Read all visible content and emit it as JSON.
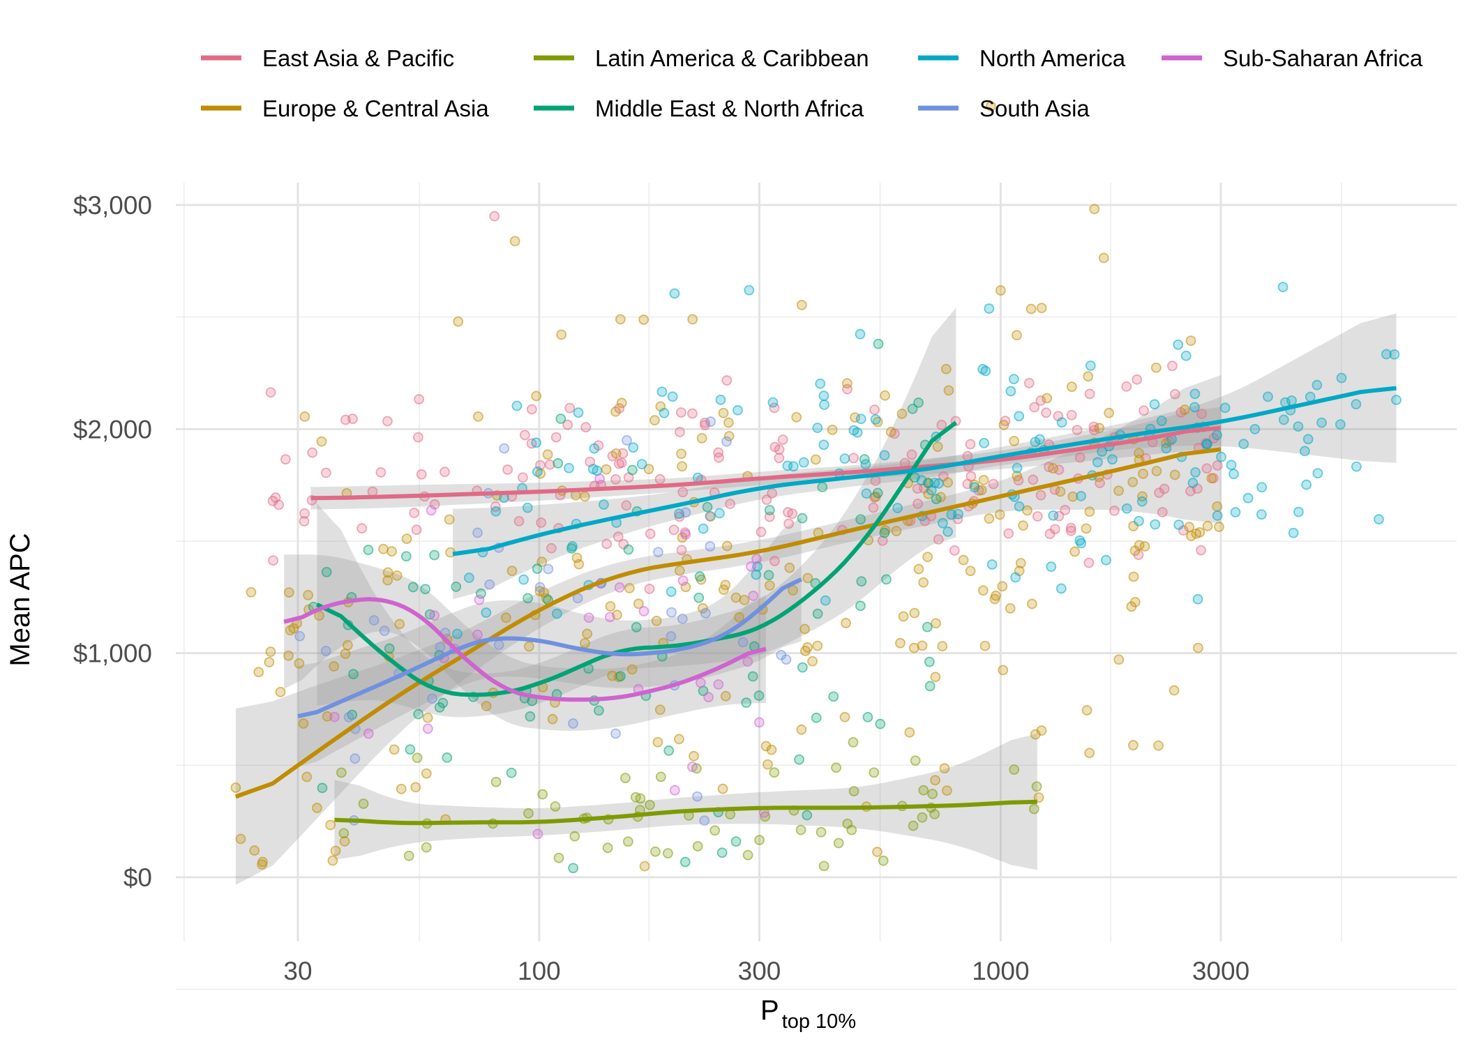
{
  "chart_data": {
    "type": "scatter",
    "title": "",
    "xlabel": "P",
    "xlabel_subscript": "top 10%",
    "ylabel": "Mean APC",
    "x_scale": "log",
    "xlim": [
      15,
      9000
    ],
    "ylim": [
      -300,
      3100
    ],
    "x_ticks": [
      30,
      100,
      300,
      1000,
      3000
    ],
    "x_tick_labels": [
      "30",
      "100",
      "300",
      "1000",
      "3000"
    ],
    "y_ticks": [
      0,
      1000,
      2000,
      3000
    ],
    "y_tick_labels": [
      "$0",
      "$1,000",
      "$2,000",
      "$3,000"
    ],
    "grid": true,
    "legend_position": "top",
    "trend": "loess smooth with confidence band",
    "series": [
      {
        "name": "East Asia & Pacific",
        "color": "#E16A86",
        "scatter": {
          "x_range": [
            25,
            3000
          ],
          "y_mean": 1800,
          "y_sd": 200,
          "n": 180
        },
        "trend": {
          "x": [
            32,
            50,
            100,
            200,
            300,
            500,
            1000,
            2000,
            3000
          ],
          "y": [
            1690,
            1700,
            1720,
            1750,
            1780,
            1810,
            1860,
            1950,
            2020
          ]
        },
        "band": [
          50,
          50,
          40,
          30,
          30,
          30,
          40,
          70,
          100
        ]
      },
      {
        "name": "Europe & Central Asia",
        "color": "#C08C00",
        "scatter": {
          "x_range": [
            22,
            3000
          ],
          "y_mean": 1350,
          "y_sd": 500,
          "n": 260
        },
        "trend": {
          "x": [
            22,
            30,
            50,
            70,
            100,
            150,
            200,
            300,
            500,
            1000,
            2000,
            3000
          ],
          "y": [
            300,
            500,
            820,
            1000,
            1200,
            1360,
            1400,
            1450,
            1560,
            1700,
            1840,
            1930
          ]
        },
        "band": [
          420,
          330,
          160,
          100,
          80,
          60,
          50,
          50,
          50,
          60,
          200,
          370
        ]
      },
      {
        "name": "Latin America & Caribbean",
        "color": "#7E9A00",
        "scatter": {
          "x_range": [
            36,
            1200
          ],
          "y_mean": 280,
          "y_sd": 160,
          "n": 60
        },
        "trend": {
          "x": [
            36,
            50,
            70,
            100,
            150,
            200,
            300,
            500,
            800,
            1200
          ],
          "y": [
            260,
            240,
            245,
            245,
            270,
            295,
            310,
            310,
            320,
            340
          ]
        },
        "band": [
          200,
          90,
          70,
          60,
          60,
          60,
          70,
          90,
          170,
          330
        ]
      },
      {
        "name": "Middle East & North Africa",
        "color": "#00A374",
        "scatter": {
          "x_range": [
            32,
            800
          ],
          "y_mean": 900,
          "y_sd": 450,
          "n": 90
        },
        "trend": {
          "x": [
            33,
            40,
            50,
            60,
            80,
            100,
            150,
            200,
            300,
            400,
            500,
            600,
            800
          ],
          "y": [
            1270,
            1100,
            930,
            820,
            810,
            860,
            1020,
            1030,
            1100,
            1280,
            1480,
            1720,
            2110
          ]
        },
        "band": [
          520,
          300,
          150,
          110,
          90,
          90,
          90,
          90,
          120,
          170,
          250,
          330,
          560
        ]
      },
      {
        "name": "North America",
        "color": "#00A8C6",
        "scatter": {
          "x_range": [
            65,
            7200
          ],
          "y_mean": 1800,
          "y_sd": 280,
          "n": 160
        },
        "trend": {
          "x": [
            65,
            100,
            150,
            200,
            300,
            500,
            700,
            1000,
            2000,
            3000,
            7200
          ],
          "y": [
            1420,
            1530,
            1610,
            1660,
            1740,
            1790,
            1820,
            1880,
            1980,
            2030,
            2200
          ]
        },
        "band": [
          220,
          130,
          80,
          60,
          50,
          40,
          40,
          40,
          60,
          100,
          360
        ]
      },
      {
        "name": "South Asia",
        "color": "#7090E0",
        "scatter": {
          "x_range": [
            29,
            370
          ],
          "y_mean": 1150,
          "y_sd": 400,
          "n": 40
        },
        "trend": {
          "x": [
            30,
            50,
            70,
            80,
            100,
            120,
            150,
            200,
            250,
            300,
            370
          ],
          "y": [
            700,
            900,
            1040,
            1070,
            1060,
            1020,
            990,
            1010,
            1070,
            1190,
            1370
          ]
        },
        "band": [
          230,
          180,
          170,
          170,
          170,
          160,
          150,
          150,
          160,
          230,
          290
        ]
      },
      {
        "name": "Sub-Saharan Africa",
        "color": "#CF63CF",
        "scatter": {
          "x_range": [
            28,
            310
          ],
          "y_mean": 1000,
          "y_sd": 350,
          "n": 30
        },
        "trend": {
          "x": [
            28,
            35,
            45,
            55,
            70,
            85,
            100,
            120,
            150,
            200,
            250,
            310
          ],
          "y": [
            1120,
            1220,
            1250,
            1180,
            960,
            830,
            800,
            790,
            800,
            860,
            940,
            1040
          ]
        },
        "band": [
          320,
          220,
          130,
          140,
          150,
          150,
          140,
          140,
          130,
          130,
          170,
          260
        ]
      }
    ],
    "outliers": [
      {
        "x": 80,
        "y": 2950,
        "color": "#E16A86"
      },
      {
        "x": 285,
        "y": 2620,
        "color": "#00A8C6"
      },
      {
        "x": 150,
        "y": 2490,
        "color": "#C08C00"
      },
      {
        "x": 215,
        "y": 2490,
        "color": "#C08C00"
      },
      {
        "x": 7200,
        "y": 2130,
        "color": "#00A8C6"
      },
      {
        "x": 3200,
        "y": 1800,
        "color": "#00A8C6"
      },
      {
        "x": 22,
        "y": 400,
        "color": "#C08C00"
      },
      {
        "x": 26,
        "y": 960,
        "color": "#C08C00"
      }
    ]
  }
}
